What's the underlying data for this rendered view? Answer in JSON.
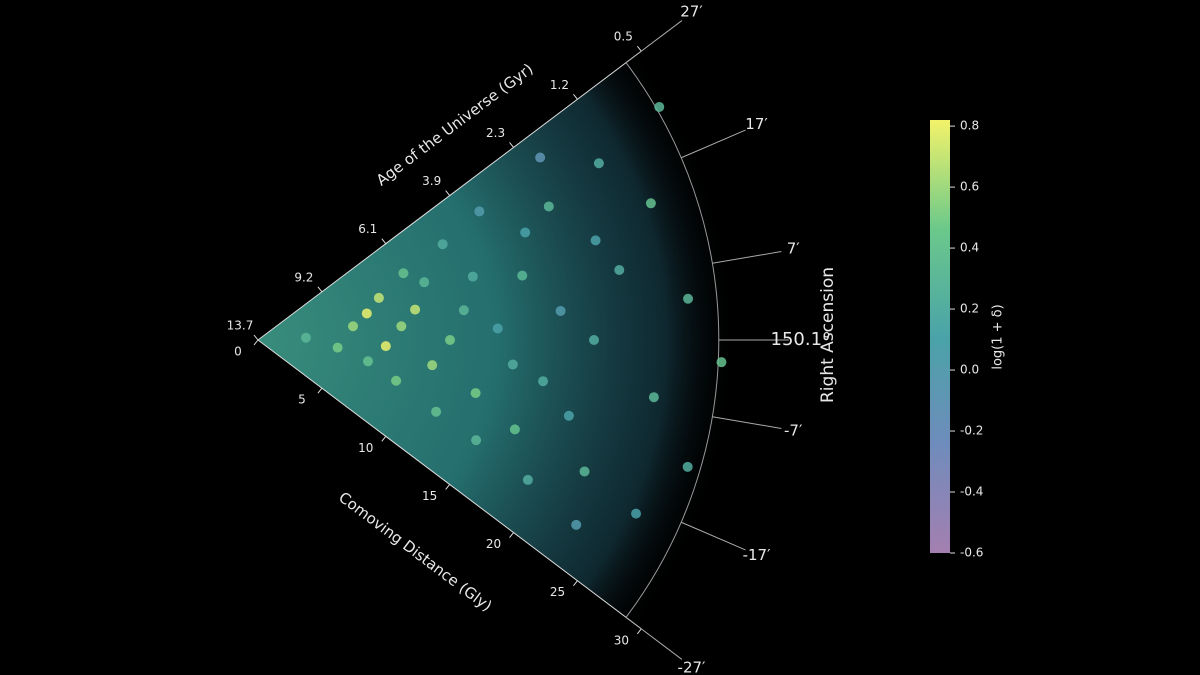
{
  "chart_data": {
    "type": "wedge",
    "x_label": "Comoving Distance (Gly)",
    "age_label": "Age of the Universe (Gyr)",
    "y_label": "Right Ascension",
    "colorbar_label": "log(1 + δ)",
    "xlim": [
      0,
      30
    ],
    "xticks": [
      0,
      5,
      10,
      15,
      20,
      25,
      30
    ],
    "age_ticks": [
      13.7,
      9.2,
      6.1,
      3.9,
      2.3,
      1.2,
      0.5
    ],
    "ylim": [
      -27,
      27
    ],
    "yticks": [
      {
        "value": 27,
        "label": "27′"
      },
      {
        "value": 17,
        "label": "17′"
      },
      {
        "value": 7,
        "label": "7′"
      },
      {
        "value": 0,
        "label": "150.1°"
      },
      {
        "value": -7,
        "label": "-7′"
      },
      {
        "value": -17,
        "label": "-17′"
      },
      {
        "value": -27,
        "label": "-27′"
      }
    ],
    "clim": [
      -0.6,
      0.82
    ],
    "cticks": [
      -0.6,
      -0.4,
      -0.2,
      0.0,
      0.2,
      0.4,
      0.6,
      0.8
    ],
    "x": [
      3,
      5,
      6,
      7,
      7,
      8,
      8,
      9,
      9,
      10,
      10,
      11,
      11,
      12,
      12,
      13,
      13,
      14,
      14,
      15,
      15,
      16,
      16,
      17,
      17,
      18,
      18,
      19,
      19,
      20,
      20,
      21,
      21,
      22,
      22,
      23,
      23,
      24,
      25,
      26,
      26,
      27,
      28,
      29,
      29
    ],
    "y": [
      2,
      -4,
      6,
      10,
      -8,
      14,
      -2,
      4,
      -12,
      18,
      8,
      -6,
      14,
      0,
      -16,
      20,
      6,
      -10,
      12,
      2,
      -18,
      22,
      -4,
      10,
      -14,
      16,
      -6,
      4,
      -20,
      18,
      -10,
      24,
      0,
      -16,
      12,
      8,
      -22,
      20,
      -6,
      14,
      -18,
      4,
      -12,
      22,
      -2
    ],
    "values": [
      0.3,
      0.5,
      0.6,
      0.8,
      0.4,
      0.7,
      0.8,
      0.6,
      0.5,
      0.4,
      0.7,
      0.6,
      0.3,
      0.5,
      0.4,
      0.2,
      0.3,
      0.5,
      0.2,
      0.1,
      0.3,
      0.0,
      0.2,
      0.3,
      0.4,
      0.1,
      0.2,
      0.0,
      0.2,
      0.3,
      0.1,
      -0.1,
      0.2,
      0.3,
      0.1,
      0.2,
      0.0,
      0.2,
      0.3,
      0.4,
      0.1,
      0.3,
      0.2,
      0.3,
      0.4
    ]
  }
}
